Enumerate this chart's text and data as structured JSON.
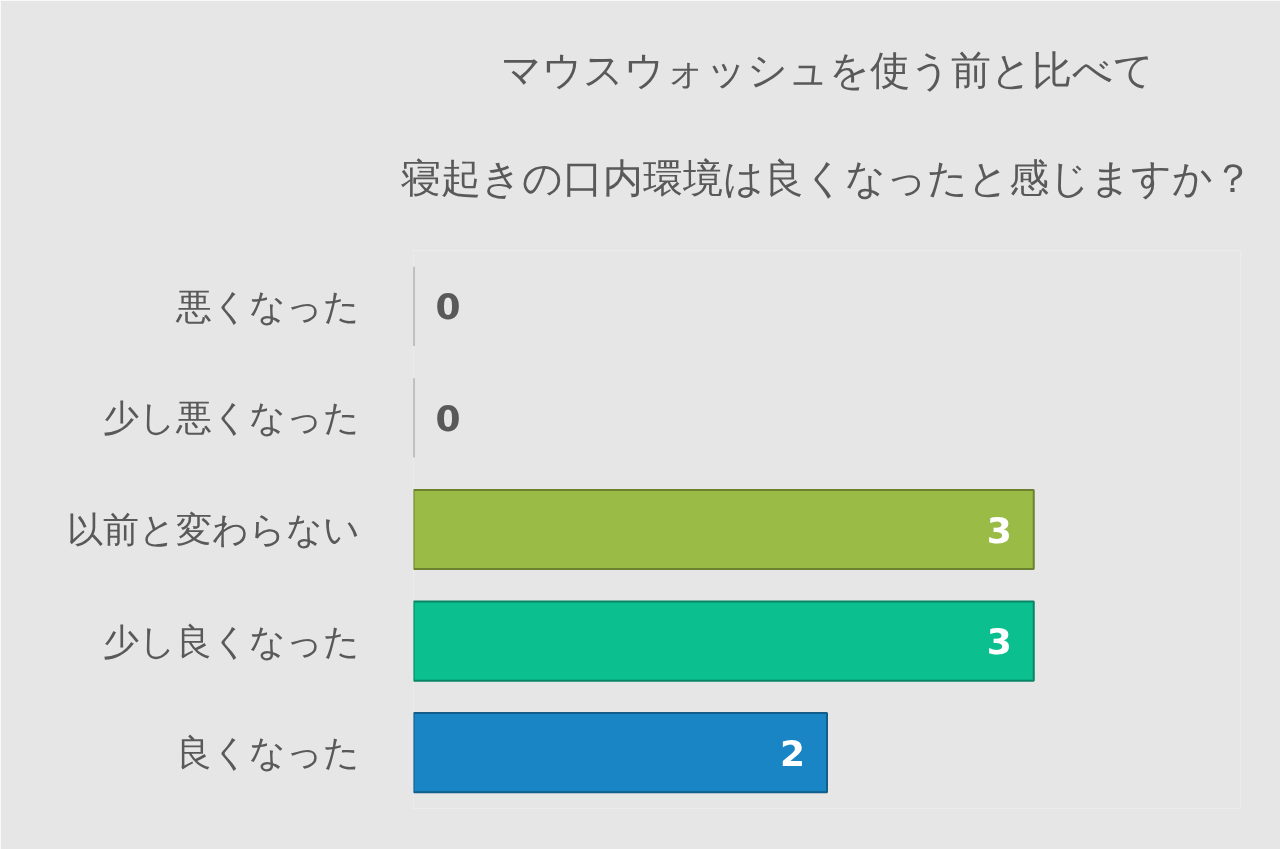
{
  "chart_data": {
    "type": "bar",
    "orientation": "horizontal",
    "title": "マウスウォッシュを使う前と比べて",
    "subtitle": "寝起きの口内環境は良くなったと感じますか？",
    "categories": [
      "悪くなった",
      "少し悪くなった",
      "以前と変わらない",
      "少し良くなった",
      "良くなった"
    ],
    "values": [
      0,
      0,
      3,
      3,
      2
    ],
    "colors": [
      "#d9d9d9",
      "#d9d9d9",
      "#9bbb47",
      "#0bbf8f",
      "#1a85c4"
    ],
    "data_labels": true,
    "tick_labels": "y"
  }
}
